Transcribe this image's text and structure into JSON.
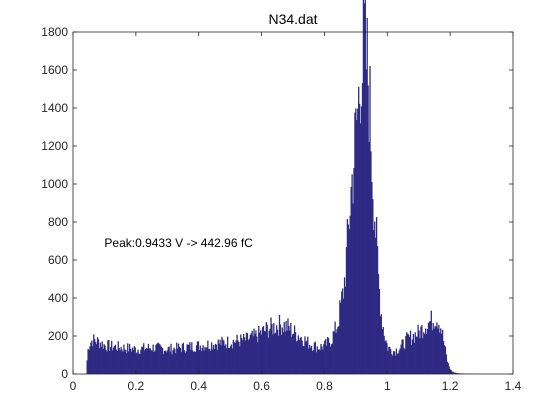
{
  "chart_data": {
    "type": "bar",
    "title": "N34.dat",
    "xlabel": "",
    "ylabel": "",
    "xlim": [
      0,
      1.4
    ],
    "ylim": [
      0,
      1800
    ],
    "xticks": [
      "0",
      "0.2",
      "0.4",
      "0.6",
      "0.8",
      "1",
      "1.2",
      "1.4"
    ],
    "yticks": [
      "0",
      "200",
      "400",
      "600",
      "800",
      "1000",
      "1200",
      "1400",
      "1600",
      "1800"
    ],
    "grid": false,
    "bar_color": "#2e2a84",
    "annotation": {
      "text": "Peak:0.9433 V -> 442.96 fC",
      "x": 0.1,
      "y": 690
    },
    "series": [
      {
        "x": [
          0.04,
          0.045,
          0.05,
          0.06,
          0.08,
          0.1,
          0.15,
          0.2,
          0.25,
          0.3,
          0.35,
          0.4,
          0.45,
          0.5,
          0.55,
          0.58,
          0.6,
          0.62,
          0.64,
          0.66,
          0.68,
          0.7,
          0.72,
          0.75,
          0.78,
          0.8,
          0.82,
          0.84,
          0.86,
          0.87,
          0.88,
          0.89,
          0.9,
          0.905,
          0.91,
          0.915,
          0.92,
          0.925,
          0.93,
          0.935,
          0.94,
          0.945,
          0.95,
          0.96,
          0.97,
          0.98,
          0.99,
          1.0,
          1.02,
          1.04,
          1.06,
          1.08,
          1.1,
          1.12,
          1.14,
          1.15,
          1.16,
          1.17,
          1.18,
          1.19,
          1.2,
          1.21,
          1.22,
          1.23,
          1.25,
          1.3,
          1.35
        ],
        "y": [
          0,
          120,
          160,
          180,
          170,
          150,
          140,
          130,
          140,
          130,
          140,
          150,
          160,
          170,
          180,
          200,
          220,
          240,
          250,
          260,
          250,
          220,
          200,
          160,
          140,
          150,
          180,
          260,
          450,
          650,
          900,
          1100,
          1300,
          1400,
          1500,
          1700,
          1600,
          1750,
          1650,
          1600,
          1500,
          1300,
          1100,
          800,
          500,
          300,
          200,
          140,
          120,
          140,
          180,
          200,
          220,
          260,
          280,
          300,
          290,
          240,
          150,
          60,
          20,
          8,
          5,
          3,
          2,
          0,
          0
        ]
      }
    ]
  }
}
